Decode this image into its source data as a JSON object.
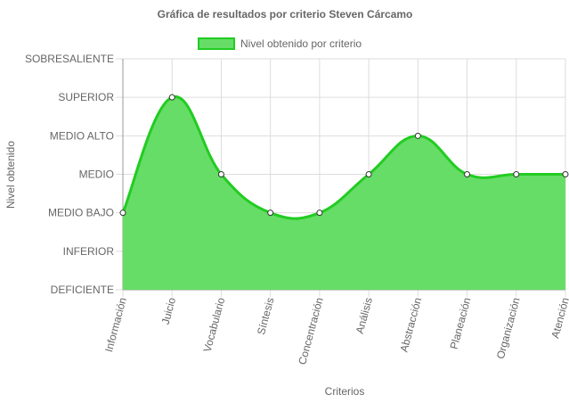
{
  "chart_data": {
    "type": "area",
    "title": "Gráfica de resultados por criterio Steven Cárcamo",
    "xlabel": "Criterios",
    "ylabel": "Nivel obtenido",
    "y_levels": [
      "DEFICIENTE",
      "INFERIOR",
      "MEDIO BAJO",
      "MEDIO",
      "MEDIO ALTO",
      "SUPERIOR",
      "SOBRESALIENTE"
    ],
    "categories": [
      "Información",
      "Juicio",
      "Vocabulario",
      "Síntesis",
      "Concentración",
      "Análisis",
      "Abstracción",
      "Planeación",
      "Organización",
      "Atención"
    ],
    "series": [
      {
        "name": "Nivel obtenido por criterio",
        "values": [
          2,
          5,
          3,
          2,
          2,
          3,
          4,
          3,
          3,
          3
        ],
        "values_labels": [
          "MEDIO BAJO",
          "SUPERIOR",
          "MEDIO",
          "MEDIO BAJO",
          "MEDIO BAJO",
          "MEDIO",
          "MEDIO ALTO",
          "MEDIO",
          "MEDIO",
          "MEDIO"
        ]
      }
    ],
    "ylim": [
      0,
      6
    ],
    "grid": true,
    "legend_position": "top",
    "colors": {
      "fill": "#66dd66",
      "line": "#22cc22",
      "point_fill": "#ffffff",
      "point_stroke": "#333333",
      "grid": "#dddddd",
      "axis": "#999999"
    }
  }
}
